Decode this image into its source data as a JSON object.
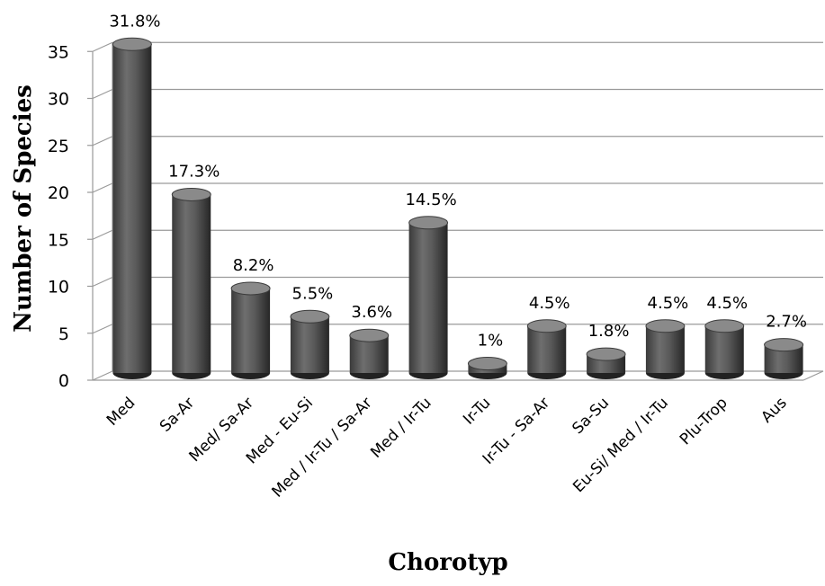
{
  "chart_data": {
    "type": "bar",
    "style": "3d-cylinder",
    "categories": [
      "Med",
      "Sa-Ar",
      "Med/ Sa-Ar",
      "Med - Eu-Si",
      "Med / Ir-Tu / Sa-Ar",
      "Med / Ir-Tu",
      "Ir-Tu",
      "Ir-Tu - Sa-Ar",
      "Sa-Su",
      "Eu-Si/ Med / Ir-Tu",
      "Plu-Trop",
      "Aus"
    ],
    "values": [
      35,
      19,
      9,
      6,
      4,
      16,
      1,
      5,
      2,
      5,
      5,
      3
    ],
    "data_labels": [
      "31.8%",
      "17.3%",
      "8.2%",
      "5.5%",
      "3.6%",
      "14.5%",
      "1%",
      "4.5%",
      "1.8%",
      "4.5%",
      "4.5%",
      "2.7%"
    ],
    "xlabel": "Chorotyp",
    "ylabel": "Number of Species",
    "ylim": [
      0,
      35
    ],
    "yticks": [
      0,
      5,
      10,
      15,
      20,
      25,
      30,
      35
    ],
    "grid": true,
    "legend": "none",
    "colors": {
      "bar": "#5a5a5a",
      "bar_dark": "#2e2e2e",
      "bar_light": "#8c8c8c",
      "grid": "#9a9a9a"
    }
  }
}
